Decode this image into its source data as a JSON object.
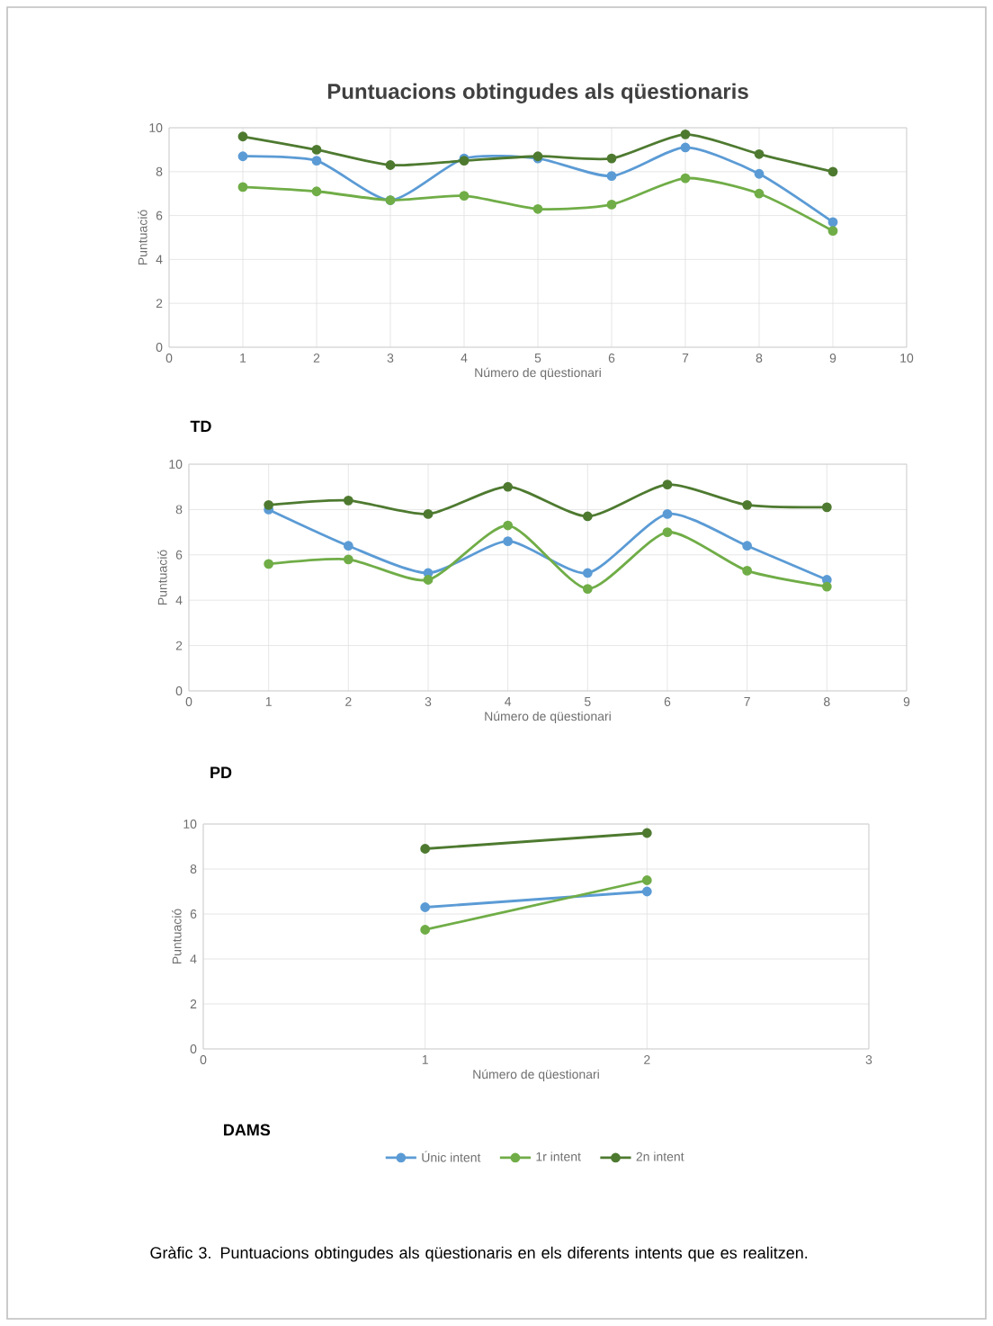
{
  "chart_data": [
    {
      "type": "line",
      "title": "Puntuacions obtingudes als qüestionaris",
      "xlabel": "Número de qüestionari",
      "ylabel": "Puntuació",
      "annotations": [
        "TD"
      ],
      "x": [
        1,
        2,
        3,
        4,
        5,
        6,
        7,
        8,
        9
      ],
      "xlim": [
        0,
        10
      ],
      "xticks": [
        0,
        1,
        2,
        3,
        4,
        5,
        6,
        7,
        8,
        9,
        10
      ],
      "ylim": [
        0,
        10
      ],
      "yticks": [
        0,
        2,
        4,
        6,
        8,
        10
      ],
      "grid": true,
      "marker": "circle",
      "legend": false,
      "series": [
        {
          "color": "#5b9bd5",
          "values": [
            8.7,
            8.5,
            6.7,
            8.6,
            8.6,
            7.8,
            9.1,
            7.9,
            5.7
          ]
        },
        {
          "color": "#70ad47",
          "values": [
            7.3,
            7.1,
            6.7,
            6.9,
            6.3,
            6.5,
            7.7,
            7.0,
            5.3
          ]
        },
        {
          "color": "#4e7a30",
          "values": [
            9.6,
            9.0,
            8.3,
            8.5,
            8.7,
            8.6,
            9.7,
            8.8,
            8.0
          ]
        }
      ]
    },
    {
      "type": "line",
      "xlabel": "Número de qüestionari",
      "ylabel": "Puntuació",
      "annotations": [
        "PD"
      ],
      "x": [
        1,
        2,
        3,
        4,
        5,
        6,
        7,
        8
      ],
      "xlim": [
        0,
        9
      ],
      "xticks": [
        0,
        1,
        2,
        3,
        4,
        5,
        6,
        7,
        8,
        9
      ],
      "ylim": [
        0,
        10
      ],
      "yticks": [
        0,
        2,
        4,
        6,
        8,
        10
      ],
      "grid": true,
      "marker": "circle",
      "legend": false,
      "series": [
        {
          "color": "#5b9bd5",
          "values": [
            8.0,
            6.4,
            5.2,
            6.6,
            5.2,
            7.8,
            6.4,
            4.9
          ]
        },
        {
          "color": "#70ad47",
          "values": [
            5.6,
            5.8,
            4.9,
            7.3,
            4.5,
            7.0,
            5.3,
            4.6
          ]
        },
        {
          "color": "#4e7a30",
          "values": [
            8.2,
            8.4,
            7.8,
            9.0,
            7.7,
            9.1,
            8.2,
            8.1
          ]
        }
      ]
    },
    {
      "type": "line",
      "xlabel": "Número de qüestionari",
      "ylabel": "Puntuació",
      "annotations": [
        "DAMS",
        "Gràfic 3. Puntuacions obtingudes als qüestionaris en els diferents intents que es realitzen."
      ],
      "x": [
        1,
        2
      ],
      "xlim": [
        0,
        3
      ],
      "xticks": [
        0,
        1,
        2,
        3
      ],
      "ylim": [
        0,
        10
      ],
      "yticks": [
        0,
        2,
        4,
        6,
        8,
        10
      ],
      "grid": true,
      "marker": "circle",
      "legend": "bottom",
      "series": [
        {
          "name": "Únic intent",
          "color": "#5b9bd5",
          "values": [
            6.3,
            7.0
          ]
        },
        {
          "name": "1r intent",
          "color": "#70ad47",
          "values": [
            5.3,
            7.5
          ]
        },
        {
          "name": "2n intent",
          "color": "#4e7a30",
          "values": [
            8.9,
            9.6
          ]
        }
      ]
    }
  ]
}
